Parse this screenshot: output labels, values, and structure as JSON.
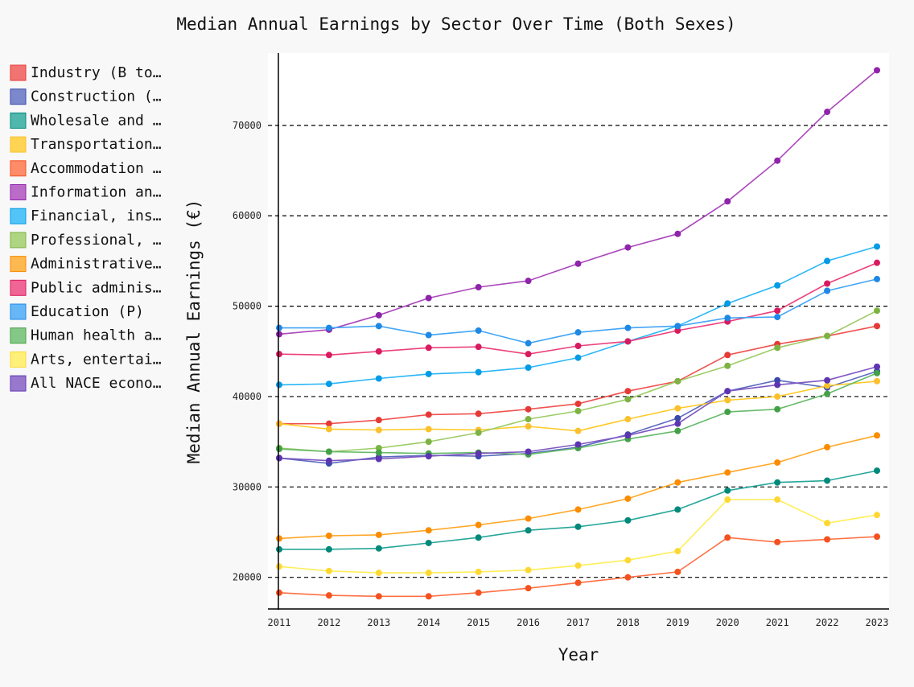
{
  "chart_data": {
    "type": "line",
    "title": "Median Annual Earnings by Sector Over Time (Both Sexes)",
    "xlabel": "Year",
    "ylabel": "Median Annual Earnings (€)",
    "x": [
      2011,
      2012,
      2013,
      2014,
      2015,
      2016,
      2017,
      2018,
      2019,
      2020,
      2021,
      2022,
      2023
    ],
    "ylim": [
      16500,
      78000
    ],
    "yticks": [
      20000,
      30000,
      40000,
      50000,
      60000,
      70000
    ],
    "grid": "horizontal dashed",
    "legend_position": "left",
    "series": [
      {
        "name": "Industry (B to…",
        "color": "#ef5350",
        "marker": "#e53935",
        "values": [
          37000,
          37000,
          37400,
          38000,
          38100,
          38600,
          39200,
          40600,
          41700,
          44600,
          45800,
          46700,
          47800
        ]
      },
      {
        "name": "Construction (…",
        "color": "#5c6bc0",
        "marker": "#3949ab",
        "values": [
          33200,
          32600,
          33300,
          33500,
          33400,
          33700,
          34400,
          35800,
          37600,
          40600,
          41800,
          41000,
          42800
        ]
      },
      {
        "name": "Wholesale and …",
        "color": "#26a69a",
        "marker": "#00897b",
        "values": [
          23100,
          23100,
          23200,
          23800,
          24400,
          25200,
          25600,
          26300,
          27500,
          29600,
          30500,
          30700,
          31800
        ]
      },
      {
        "name": "Transportation…",
        "color": "#ffca28",
        "marker": "#fbc02d",
        "values": [
          37000,
          36400,
          36300,
          36400,
          36300,
          36700,
          36200,
          37500,
          38700,
          39600,
          40000,
          41200,
          41700
        ]
      },
      {
        "name": "Accommodation …",
        "color": "#ff7043",
        "marker": "#f4511e",
        "values": [
          18300,
          18000,
          17900,
          17900,
          18300,
          18800,
          19400,
          20000,
          20600,
          24400,
          23900,
          24200,
          24500
        ]
      },
      {
        "name": "Information an…",
        "color": "#ab47bc",
        "marker": "#8e24aa",
        "values": [
          46900,
          47400,
          49000,
          50900,
          52100,
          52800,
          54700,
          56500,
          58000,
          61600,
          66100,
          71500,
          76100
        ]
      },
      {
        "name": "Financial, ins…",
        "color": "#29b6f6",
        "marker": "#039be5",
        "values": [
          41300,
          41400,
          42000,
          42500,
          42700,
          43200,
          44300,
          46100,
          47800,
          50300,
          52300,
          55000,
          56600
        ]
      },
      {
        "name": "Professional, …",
        "color": "#9ccc65",
        "marker": "#7cb342",
        "values": [
          34300,
          33900,
          34300,
          35000,
          36000,
          37500,
          38400,
          39700,
          41700,
          43400,
          45400,
          46700,
          49500
        ]
      },
      {
        "name": "Administrative…",
        "color": "#ffa726",
        "marker": "#fb8c00",
        "values": [
          24300,
          24600,
          24700,
          25200,
          25800,
          26500,
          27500,
          28700,
          30500,
          31600,
          32700,
          34400,
          35700
        ]
      },
      {
        "name": "Public adminis…",
        "color": "#ec407a",
        "marker": "#d81b60",
        "values": [
          44700,
          44600,
          45000,
          45400,
          45500,
          44700,
          45600,
          46100,
          47300,
          48300,
          49500,
          52500,
          54800
        ]
      },
      {
        "name": "Education (P)",
        "color": "#42a5f5",
        "marker": "#1e88e5",
        "values": [
          47600,
          47600,
          47800,
          46800,
          47300,
          45900,
          47100,
          47600,
          47800,
          48700,
          48800,
          51700,
          53000
        ]
      },
      {
        "name": "Human health a…",
        "color": "#66bb6a",
        "marker": "#43a047",
        "values": [
          34200,
          33900,
          33800,
          33700,
          33800,
          33600,
          34300,
          35300,
          36200,
          38300,
          38600,
          40300,
          42600
        ]
      },
      {
        "name": "Arts, entertai…",
        "color": "#ffee58",
        "marker": "#fdd835",
        "values": [
          21200,
          20700,
          20500,
          20500,
          20600,
          20800,
          21300,
          21900,
          22900,
          28600,
          28600,
          26000,
          26900
        ]
      },
      {
        "name": "All NACE econo…",
        "color": "#7e57c2",
        "marker": "#5e35b1",
        "values": [
          33200,
          32900,
          33100,
          33400,
          33700,
          33900,
          34700,
          35700,
          37000,
          40600,
          41300,
          41800,
          43300
        ]
      }
    ]
  }
}
